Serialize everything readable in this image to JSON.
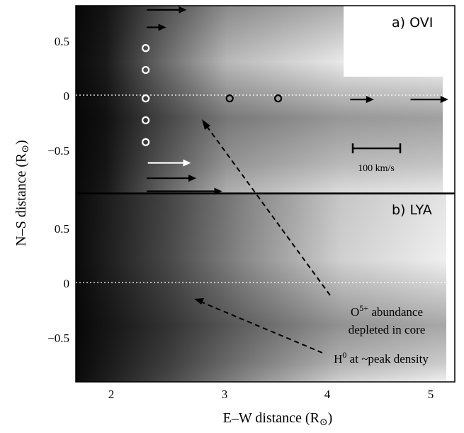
{
  "chart_data": [
    {
      "type": "heatmap",
      "panel_label": "a) OVI",
      "x_ticks": [
        "2",
        "3",
        "4",
        "5"
      ],
      "y_ticks": [
        "0.5",
        "0",
        "−0.5"
      ],
      "colorscale": "greyscale (dark = high intensity)",
      "velocity_scale_label": "100 km/s",
      "zero_line": true,
      "circles": [
        {
          "x": 2.32,
          "y": 0.43,
          "color": "white"
        },
        {
          "x": 2.32,
          "y": 0.23,
          "color": "white"
        },
        {
          "x": 2.32,
          "y": -0.03,
          "color": "white"
        },
        {
          "x": 2.32,
          "y": -0.23,
          "color": "white"
        },
        {
          "x": 2.32,
          "y": -0.43,
          "color": "white"
        },
        {
          "x": 3.1,
          "y": -0.03,
          "color": "black"
        },
        {
          "x": 3.55,
          "y": -0.03,
          "color": "black"
        }
      ],
      "arrows": [
        {
          "x": 2.33,
          "y": 0.78,
          "dx": 0.37,
          "dy": 0.0,
          "color": "black"
        },
        {
          "x": 2.33,
          "y": 0.62,
          "dx": 0.18,
          "dy": 0.0,
          "color": "black"
        },
        {
          "x": 4.22,
          "y": -0.04,
          "dx": 0.22,
          "dy": 0.0,
          "color": "black"
        },
        {
          "x": 4.78,
          "y": -0.04,
          "dx": 0.35,
          "dy": 0.0,
          "color": "black"
        },
        {
          "x": 2.34,
          "y": -0.62,
          "dx": 0.4,
          "dy": 0.0,
          "color": "white"
        },
        {
          "x": 2.33,
          "y": -0.76,
          "dx": 0.46,
          "dy": 0.0,
          "color": "black"
        },
        {
          "x": 2.33,
          "y": -0.88,
          "dx": 0.7,
          "dy": 0.0,
          "color": "black"
        }
      ]
    },
    {
      "type": "heatmap",
      "panel_label": "b) LYA",
      "x_ticks": [
        "2",
        "3",
        "4",
        "5"
      ],
      "y_ticks": [
        "0.5",
        "0",
        "−0.5"
      ],
      "colorscale": "greyscale (dark = high intensity)",
      "zero_line": true
    }
  ],
  "axes": {
    "xlabel": "E–W distance (R",
    "ylabel": "N–S distance (R",
    "sun_symbol": "⊙",
    "xlim": [
      1.65,
      5.2
    ],
    "ylim_top": [
      -0.9,
      0.85
    ],
    "ylim_bottom": [
      -0.9,
      0.85
    ]
  },
  "annotations": {
    "o5_line1_base": "O",
    "o5_line1_sup": "5+",
    "o5_line1_rest": " abundance",
    "o5_line2": "depleted in core",
    "h0_base": "H",
    "h0_sup": "0",
    "h0_rest": " at ~peak density"
  }
}
